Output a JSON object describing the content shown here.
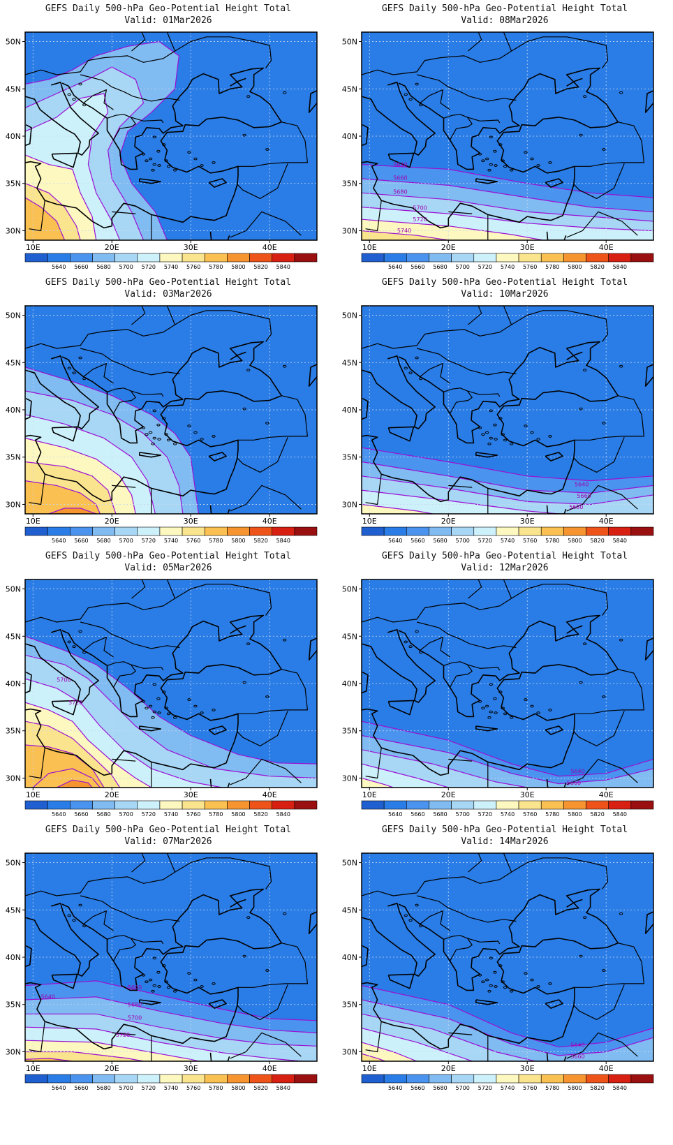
{
  "colorbar": {
    "labels": [
      "5640",
      "5660",
      "5680",
      "5700",
      "5720",
      "5740",
      "5760",
      "5780",
      "5800",
      "5820",
      "5840"
    ],
    "colors": [
      "#1f5fcf",
      "#2a7de6",
      "#4a93ee",
      "#80bbf2",
      "#a8d7f6",
      "#cdf1fb",
      "#fdf7c0",
      "#fbe48e",
      "#fac152",
      "#f6952f",
      "#ee5419",
      "#d71f12",
      "#9a0f0f"
    ]
  },
  "axes": {
    "lat_ticks": [
      "50N",
      "45N",
      "40N",
      "35N",
      "30N"
    ],
    "lon_ticks": [
      "10E",
      "20E",
      "30E",
      "40E"
    ]
  },
  "map": {
    "type": "contour-map",
    "field": "500-hPa geopotential height",
    "lon_range": [
      9,
      46
    ],
    "lat_range": [
      29,
      51
    ],
    "grid": "dotted"
  },
  "panels": [
    {
      "title": "GEFS Daily 500-hPa Geo-Potential Height Total",
      "valid": "Valid: 01Mar2026",
      "contour_labels": []
    },
    {
      "title": "GEFS Daily 500-hPa Geo-Potential Height Total",
      "valid": "Valid: 08Mar2026",
      "contour_labels": [
        "5640",
        "5660",
        "5680",
        "5700",
        "5720",
        "5740"
      ]
    },
    {
      "title": "GEFS Daily 500-hPa Geo-Potential Height Total",
      "valid": "Valid: 03Mar2026",
      "contour_labels": []
    },
    {
      "title": "GEFS Daily 500-hPa Geo-Potential Height Total",
      "valid": "Valid: 10Mar2026",
      "contour_labels": [
        "5640",
        "5660",
        "5680"
      ]
    },
    {
      "title": "GEFS Daily 500-hPa Geo-Potential Height Total",
      "valid": "Valid: 05Mar2026",
      "contour_labels": [
        "5700",
        "5720"
      ]
    },
    {
      "title": "GEFS Daily 500-hPa Geo-Potential Height Total",
      "valid": "Valid: 12Mar2026",
      "contour_labels": [
        "5640",
        "5660"
      ]
    },
    {
      "title": "GEFS Daily 500-hPa Geo-Potential Height Total",
      "valid": "Valid: 07Mar2026",
      "contour_labels": [
        "5640",
        "5660",
        "5680",
        "5700",
        "5720"
      ]
    },
    {
      "title": "GEFS Daily 500-hPa Geo-Potential Height Total",
      "valid": "Valid: 14Mar2026",
      "contour_labels": [
        "5640",
        "5660"
      ]
    }
  ]
}
